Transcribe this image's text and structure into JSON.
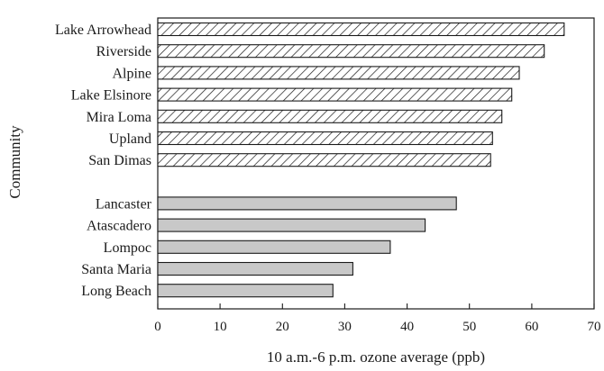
{
  "chart_data": {
    "type": "bar",
    "orientation": "horizontal",
    "xlabel": "10 a.m.-6 p.m. ozone average (ppb)",
    "ylabel": "Community",
    "xlim": [
      0,
      70
    ],
    "xticks": [
      0,
      10,
      20,
      30,
      40,
      50,
      60,
      70
    ],
    "grid": false,
    "groups": [
      {
        "fill": "hatched",
        "categories": [
          "Lake Arrowhead",
          "Riverside",
          "Alpine",
          "Lake Elsinore",
          "Mira Loma",
          "Upland",
          "San Dimas"
        ],
        "values": [
          65.2,
          62.0,
          58.0,
          56.8,
          55.2,
          53.7,
          53.4
        ]
      },
      {
        "fill": "#c8c8c8",
        "categories": [
          "Lancaster",
          "Atascadero",
          "Lompoc",
          "Santa Maria",
          "Long Beach"
        ],
        "values": [
          47.9,
          42.9,
          37.3,
          31.3,
          28.1
        ]
      }
    ]
  }
}
